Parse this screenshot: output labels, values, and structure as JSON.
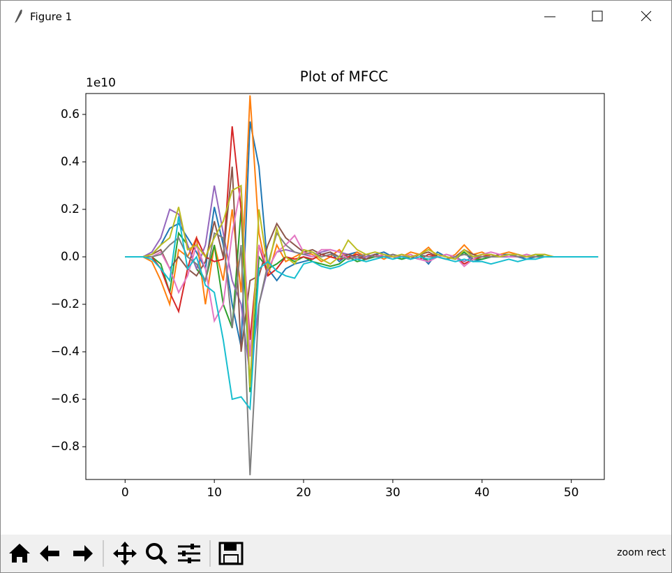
{
  "window": {
    "title": "Figure 1"
  },
  "toolbar": {
    "status": "zoom rect"
  },
  "chart_data": {
    "type": "line",
    "title": "Plot of MFCC",
    "offset_label": "1e10",
    "x": [
      0,
      1,
      2,
      3,
      4,
      5,
      6,
      7,
      8,
      9,
      10,
      11,
      12,
      13,
      14,
      15,
      16,
      17,
      18,
      19,
      20,
      21,
      22,
      23,
      24,
      25,
      26,
      27,
      28,
      29,
      30,
      31,
      32,
      33,
      34,
      35,
      36,
      37,
      38,
      39,
      40,
      41,
      42,
      43,
      44,
      45,
      46,
      47,
      48,
      49,
      50,
      51,
      52,
      53
    ],
    "xlim": [
      -4.4,
      53.7
    ],
    "xticks": [
      0,
      10,
      20,
      30,
      40,
      50
    ],
    "ylim": [
      -0.938,
      0.688
    ],
    "yticks": [
      {
        "value": -0.8,
        "label": "−0.8"
      },
      {
        "value": -0.6,
        "label": "−0.6"
      },
      {
        "value": -0.4,
        "label": "−0.4"
      },
      {
        "value": -0.2,
        "label": "−0.2"
      },
      {
        "value": 0,
        "label": "0.0"
      },
      0.2,
      0.4,
      0.6
    ],
    "series": [
      {
        "color": "#1f77b4",
        "values": [
          0,
          0,
          0,
          0.01,
          0.05,
          0.12,
          0.14,
          0.08,
          0.02,
          -0.05,
          0.21,
          0.05,
          -0.2,
          -0.38,
          0.57,
          0.38,
          -0.05,
          -0.1,
          -0.05,
          -0.03,
          -0.02,
          -0.01,
          0.01,
          0.02,
          -0.02,
          0.01,
          0.02,
          -0.01,
          0.01,
          0.02,
          0,
          -0.01,
          0,
          0.01,
          -0.03,
          0.02,
          0,
          -0.01,
          0.02,
          -0.02,
          -0.01,
          0,
          0.01,
          0.01,
          0,
          -0.01,
          0,
          0.01,
          0,
          0,
          0,
          0,
          0,
          0
        ]
      },
      {
        "color": "#ff7f0e",
        "values": [
          0,
          0,
          0,
          -0.02,
          -0.1,
          -0.2,
          0.03,
          0,
          0.08,
          -0.2,
          0.05,
          -0.1,
          0.2,
          -0.15,
          0.68,
          0.1,
          -0.08,
          0.05,
          -0.02,
          0,
          0.02,
          0.01,
          -0.02,
          0,
          0.03,
          -0.01,
          0.02,
          0,
          0.01,
          -0.01,
          0.01,
          0,
          0.02,
          0.01,
          0.04,
          0,
          -0.01,
          0.01,
          0.05,
          0.01,
          0.02,
          0,
          0.01,
          0.02,
          0.01,
          0,
          0.01,
          0.01,
          0,
          0,
          0,
          0,
          0,
          0
        ]
      },
      {
        "color": "#2ca02c",
        "values": [
          0,
          0,
          0,
          0,
          -0.03,
          -0.15,
          0.1,
          0.05,
          -0.05,
          -0.1,
          0.05,
          -0.2,
          -0.3,
          0.2,
          -0.57,
          0,
          -0.05,
          -0.03,
          0,
          -0.02,
          0,
          -0.02,
          -0.03,
          -0.04,
          -0.03,
          0,
          -0.02,
          -0.01,
          0,
          0.01,
          0,
          -0.01,
          0,
          0.01,
          -0.02,
          0.01,
          0,
          -0.01,
          0.02,
          -0.01,
          -0.01,
          0,
          0,
          0.01,
          0,
          0,
          0.01,
          0,
          0,
          0,
          0,
          0,
          0,
          0
        ]
      },
      {
        "color": "#d62728",
        "values": [
          0,
          0,
          0,
          0,
          -0.05,
          -0.15,
          -0.23,
          -0.05,
          0.08,
          0,
          -0.02,
          -0.01,
          0.55,
          0.2,
          -0.35,
          0.05,
          -0.08,
          -0.05,
          0,
          -0.01,
          0,
          -0.01,
          0.01,
          0,
          -0.01,
          0,
          0.01,
          -0.01,
          0.01,
          0,
          0,
          0.01,
          0,
          -0.01,
          0.01,
          0,
          -0.01,
          0,
          -0.03,
          -0.01,
          0,
          0.01,
          0,
          0,
          0,
          0.01,
          0,
          0,
          0,
          0,
          0,
          0,
          0,
          0
        ]
      },
      {
        "color": "#9467bd",
        "values": [
          0,
          0,
          0,
          0.02,
          0.08,
          0.2,
          0.18,
          0.05,
          -0.05,
          0.05,
          0.3,
          0.1,
          -0.1,
          -0.2,
          -0.5,
          -0.2,
          -0.05,
          0.02,
          0.03,
          0.02,
          0.01,
          0,
          0.02,
          0.03,
          0.02,
          0.01,
          -0.01,
          0,
          0.01,
          0,
          0,
          0.01,
          0,
          -0.01,
          -0.02,
          0,
          0.01,
          0,
          -0.02,
          0,
          0.01,
          0.01,
          0,
          0,
          0.01,
          0,
          0,
          0,
          0,
          0,
          0,
          0,
          0,
          0
        ]
      },
      {
        "color": "#8c564b",
        "values": [
          0,
          0,
          0,
          0.01,
          0.03,
          -0.05,
          0,
          -0.05,
          -0.08,
          -0.02,
          0.15,
          0,
          0.38,
          -0.4,
          -0.1,
          -0.08,
          0.05,
          0.14,
          0.08,
          0.05,
          0.02,
          0.03,
          0.01,
          0.02,
          0,
          0.01,
          0,
          -0.01,
          0.01,
          0,
          0.01,
          0,
          -0.01,
          0.01,
          0.02,
          0,
          -0.01,
          0,
          0.03,
          0.01,
          0,
          0,
          0.01,
          0,
          0,
          0.01,
          0,
          0,
          0,
          0,
          0,
          0,
          0,
          0
        ]
      },
      {
        "color": "#e377c2",
        "values": [
          0,
          0,
          0,
          0,
          0.02,
          -0.05,
          -0.15,
          -0.08,
          0.05,
          -0.05,
          -0.27,
          -0.2,
          0.1,
          0.3,
          -0.42,
          0.05,
          -0.05,
          0.02,
          0.05,
          0.09,
          0.02,
          0,
          0.03,
          0.03,
          0.02,
          -0.01,
          0,
          0.01,
          0,
          0.01,
          0,
          0,
          0.01,
          -0.01,
          -0.02,
          0,
          0.01,
          0,
          -0.04,
          -0.01,
          0.01,
          0.02,
          0.01,
          0,
          0,
          0.01,
          0,
          0,
          0,
          0,
          0,
          0,
          0,
          0
        ]
      },
      {
        "color": "#7f7f7f",
        "values": [
          0,
          0,
          0,
          0,
          0.01,
          0.05,
          0.08,
          0,
          -0.03,
          -0.1,
          0.1,
          0.08,
          -0.3,
          0.05,
          -0.92,
          -0.2,
          -0.03,
          0.1,
          0.05,
          0.02,
          0.01,
          0.02,
          0,
          0.01,
          0,
          -0.01,
          0,
          0.01,
          0,
          0,
          0.01,
          0,
          0,
          0.01,
          0,
          0,
          -0.01,
          0,
          0.01,
          0,
          0,
          0,
          0,
          0.01,
          0,
          0,
          0,
          0,
          0,
          0,
          0,
          0,
          0,
          0
        ]
      },
      {
        "color": "#bcbd22",
        "values": [
          0,
          0,
          0,
          0.01,
          0.05,
          0.08,
          0.21,
          0.03,
          0.05,
          0,
          0.08,
          0.15,
          0.28,
          0.3,
          -0.55,
          0.2,
          -0.05,
          0.12,
          0,
          -0.03,
          0.03,
          0.02,
          -0.01,
          -0.03,
          0,
          0.07,
          0.03,
          0.01,
          0.02,
          0.01,
          0,
          0.01,
          0,
          0.01,
          0.03,
          0.01,
          0,
          -0.01,
          0.03,
          0,
          0.01,
          0.01,
          0,
          0.01,
          0.01,
          0,
          0.01,
          0.01,
          0,
          0,
          0,
          0,
          0,
          0
        ]
      },
      {
        "color": "#17becf",
        "values": [
          0,
          0,
          0,
          -0.01,
          -0.05,
          -0.1,
          0.17,
          -0.05,
          0,
          -0.12,
          -0.15,
          -0.35,
          -0.6,
          -0.59,
          -0.64,
          -0.05,
          -0.02,
          -0.06,
          -0.08,
          -0.09,
          -0.03,
          -0.02,
          -0.04,
          -0.05,
          -0.04,
          -0.02,
          -0.01,
          -0.02,
          -0.01,
          0,
          -0.01,
          0,
          -0.01,
          0,
          -0.01,
          0,
          -0.01,
          -0.02,
          -0.01,
          -0.02,
          -0.02,
          -0.03,
          -0.02,
          -0.01,
          -0.02,
          -0.01,
          -0.01,
          0,
          0,
          0,
          0,
          0,
          0,
          0
        ]
      }
    ]
  }
}
